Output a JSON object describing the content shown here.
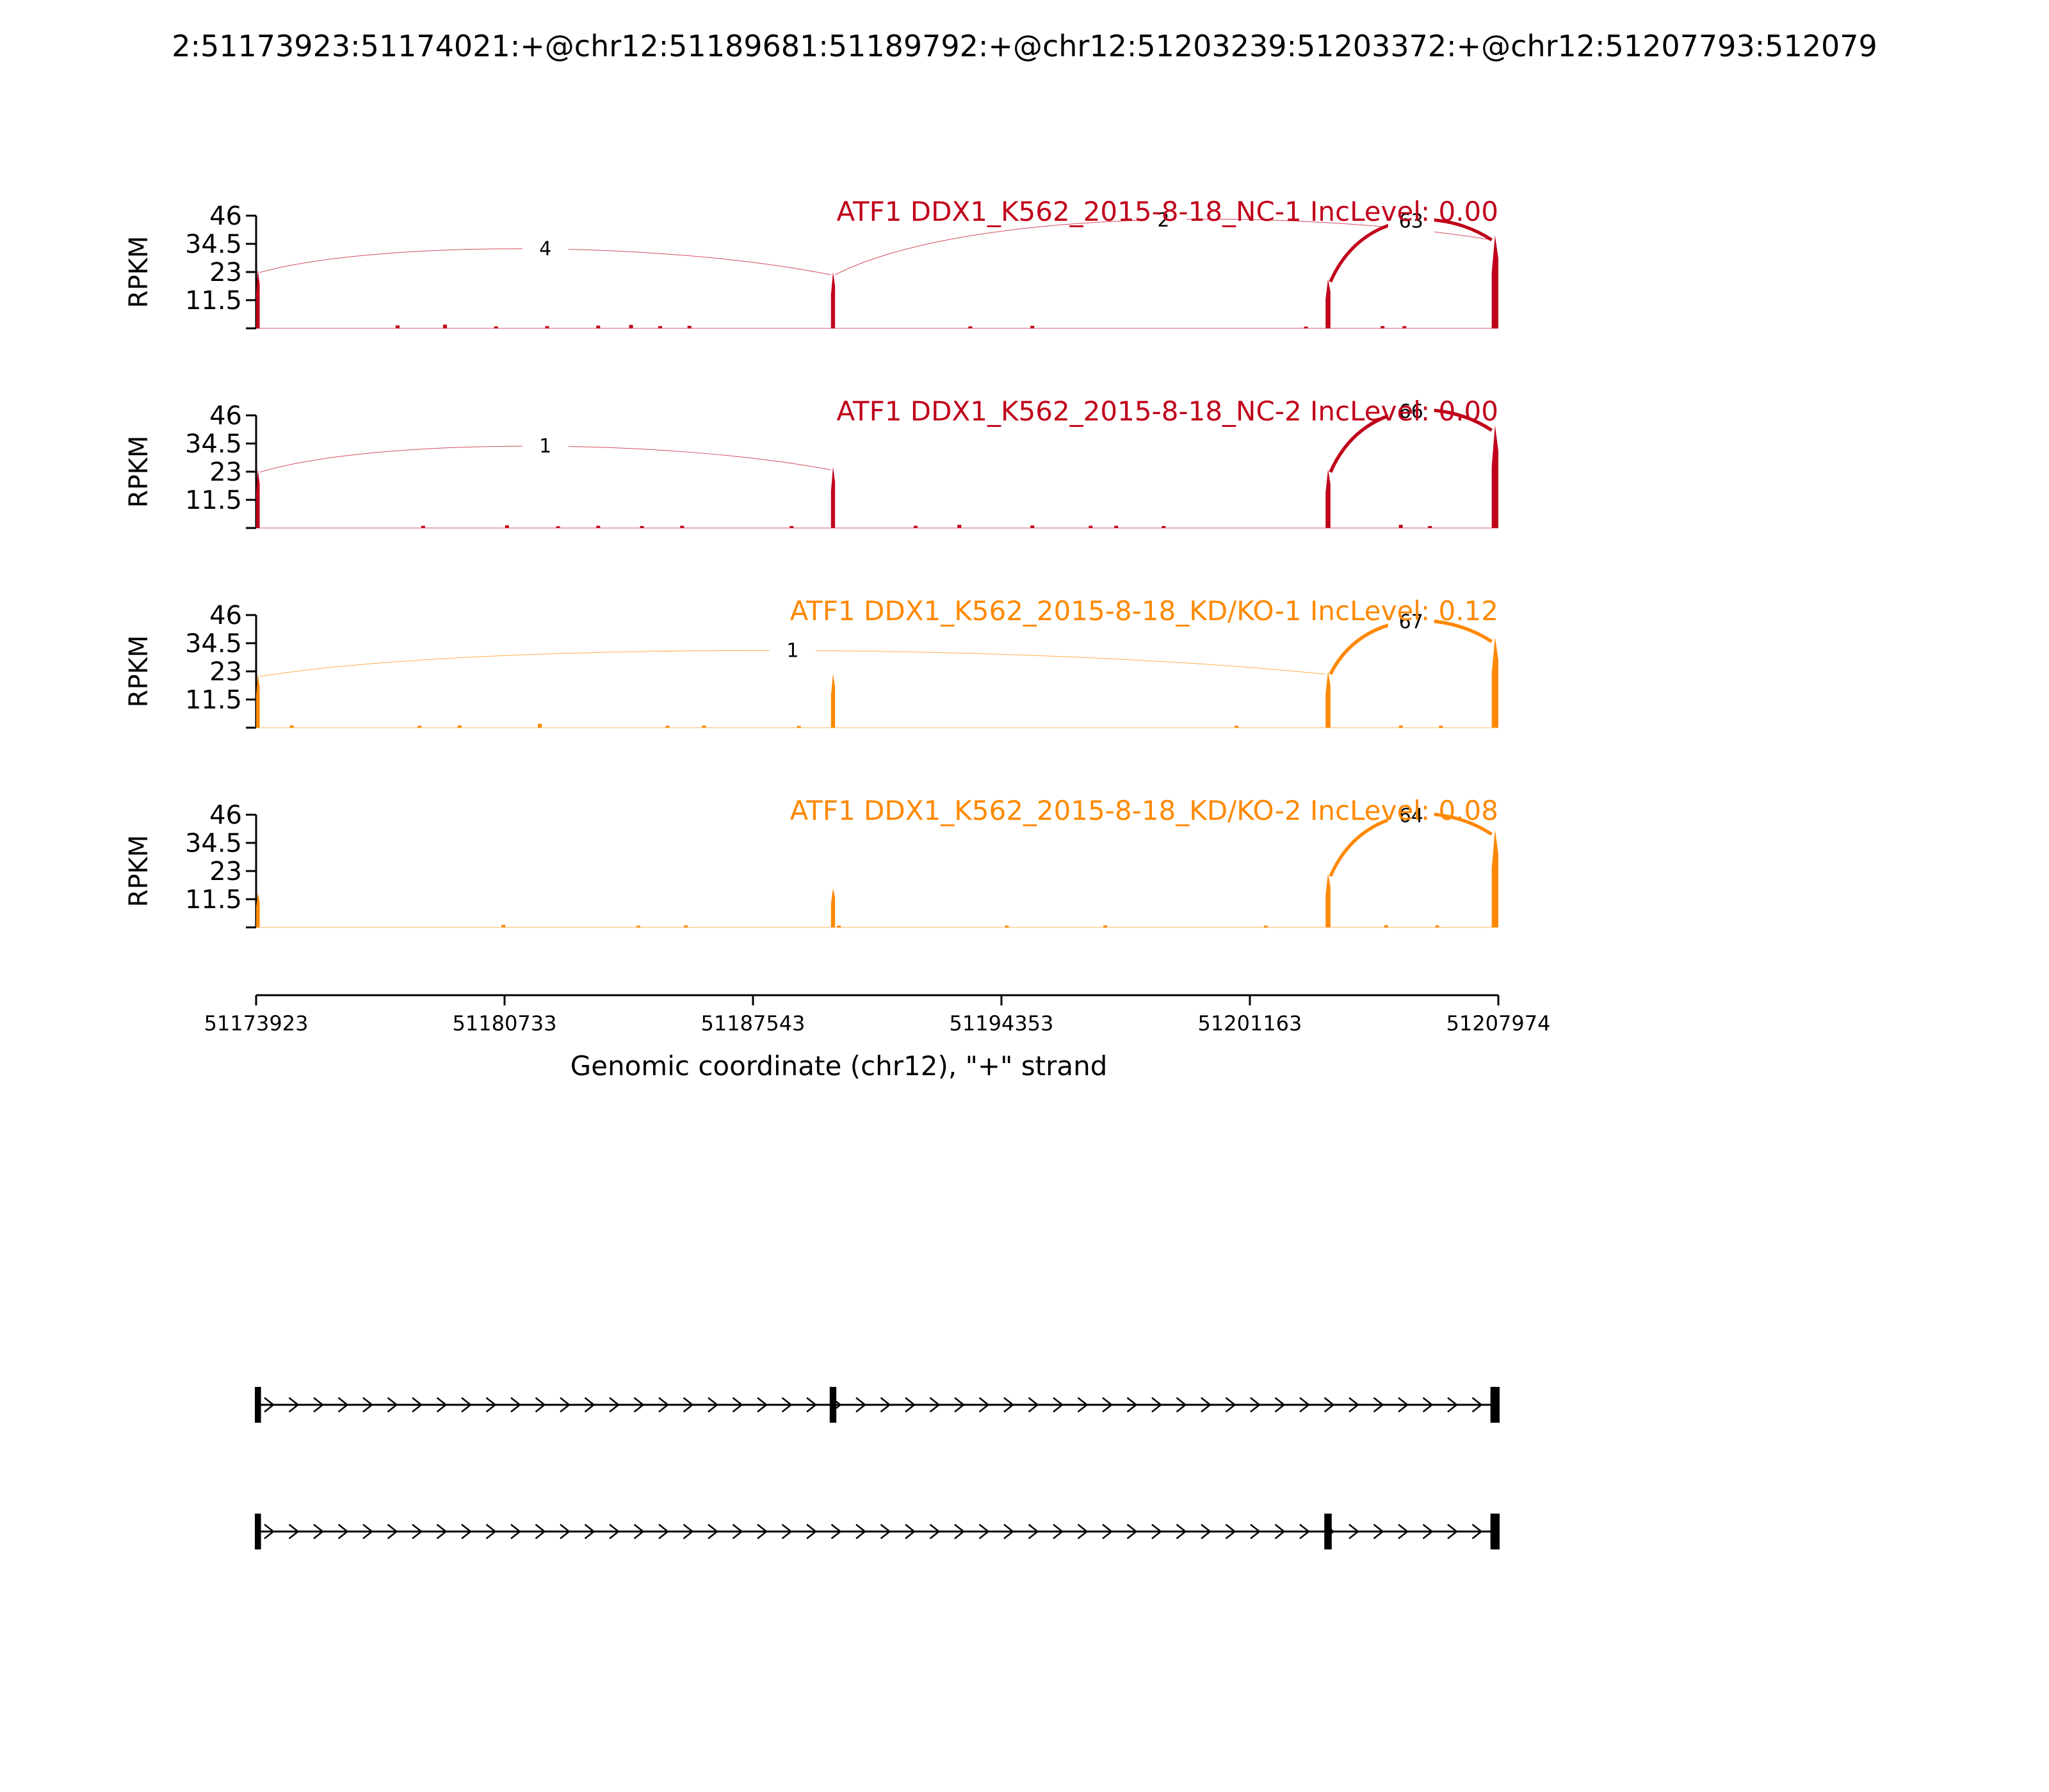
{
  "title": "2:51173923:51174021:+@chr12:51189681:51189792:+@chr12:51203239:51203372:+@chr12:51207793:512079",
  "colors": {
    "nc": "#c0001a",
    "kd": "#ff8800",
    "axis": "#000000"
  },
  "chart_data": {
    "type": "sashimi",
    "title": "2:51173923:51174021:+@chr12:51189681:51189792:+@chr12:51203239:51203372:+@chr12:51207793:512079",
    "xlabel": "Genomic coordinate (chr12), \"+\" strand",
    "xlim": [
      51173923,
      51207974
    ],
    "xticks": [
      "51173923",
      "51180733",
      "51187543",
      "51194353",
      "51201163",
      "51207974"
    ],
    "ylabel": "RPKM",
    "ylim": [
      0,
      46
    ],
    "yticks": [
      "46",
      "34.5",
      "23",
      "11.5"
    ],
    "exons": [
      [
        51173923,
        51174021
      ],
      [
        51189681,
        51189792
      ],
      [
        51203239,
        51203372
      ],
      [
        51207793,
        51207974
      ]
    ],
    "tracks": [
      {
        "label": "ATF1 DDX1_K562_2015-8-18_NC-1 IncLevel: 0.00",
        "group": "nc",
        "junctions": [
          {
            "from": 51174021,
            "to": 51189681,
            "count": "4",
            "side": "above"
          },
          {
            "from": 51189792,
            "to": 51207793,
            "count": "2",
            "side": "above"
          },
          {
            "from": 51203372,
            "to": 51207793,
            "count": "63",
            "side": "above"
          }
        ],
        "exon_peaks": [
          24,
          23,
          20,
          38
        ],
        "small_peaks": [
          [
            51177800,
            1.2
          ],
          [
            51179100,
            1.5
          ],
          [
            51180500,
            0.8
          ],
          [
            51181900,
            0.9
          ],
          [
            51183300,
            1.1
          ],
          [
            51184200,
            1.4
          ],
          [
            51185000,
            0.9
          ],
          [
            51185800,
            1.0
          ],
          [
            51193500,
            0.8
          ],
          [
            51195200,
            1.0
          ],
          [
            51202700,
            0.7
          ],
          [
            51204800,
            0.9
          ],
          [
            51205400,
            0.9
          ]
        ]
      },
      {
        "label": "ATF1 DDX1_K562_2015-8-18_NC-2 IncLevel: 0.00",
        "group": "nc",
        "junctions": [
          {
            "from": 51174021,
            "to": 51189681,
            "count": "1",
            "side": "above"
          },
          {
            "from": 51203372,
            "to": 51207793,
            "count": "66",
            "side": "above"
          }
        ],
        "exon_peaks": [
          24,
          25,
          24,
          42
        ],
        "small_peaks": [
          [
            51178500,
            0.9
          ],
          [
            51180800,
            1.1
          ],
          [
            51182200,
            0.7
          ],
          [
            51183300,
            0.9
          ],
          [
            51184500,
            0.8
          ],
          [
            51185600,
            0.9
          ],
          [
            51188600,
            0.8
          ],
          [
            51192000,
            0.9
          ],
          [
            51193200,
            1.3
          ],
          [
            51195200,
            1.0
          ],
          [
            51196800,
            0.9
          ],
          [
            51197500,
            0.9
          ],
          [
            51198800,
            0.8
          ],
          [
            51205300,
            1.3
          ],
          [
            51206100,
            0.8
          ]
        ]
      },
      {
        "label": "ATF1 DDX1_K562_2015-8-18_KD/KO-1 IncLevel: 0.12",
        "group": "kd",
        "junctions": [
          {
            "from": 51174021,
            "to": 51203239,
            "count": "1",
            "side": "above"
          },
          {
            "from": 51203372,
            "to": 51207793,
            "count": "67",
            "side": "above"
          }
        ],
        "exon_peaks": [
          22,
          22,
          23,
          37
        ],
        "small_peaks": [
          [
            51174900,
            0.9
          ],
          [
            51178400,
            0.8
          ],
          [
            51179500,
            0.9
          ],
          [
            51181700,
            1.6
          ],
          [
            51185200,
            0.8
          ],
          [
            51186200,
            0.9
          ],
          [
            51188800,
            0.7
          ],
          [
            51200800,
            0.8
          ],
          [
            51205300,
            0.9
          ],
          [
            51206400,
            0.8
          ]
        ]
      },
      {
        "label": "ATF1 DDX1_K562_2015-8-18_KD/KO-2 IncLevel: 0.08",
        "group": "kd",
        "junctions": [
          {
            "from": 51203372,
            "to": 51207793,
            "count": "64",
            "side": "above"
          }
        ],
        "exon_peaks": [
          14,
          16,
          22,
          40
        ],
        "small_peaks": [
          [
            51180700,
            1.0
          ],
          [
            51184400,
            0.7
          ],
          [
            51185700,
            0.8
          ],
          [
            51189900,
            0.7
          ],
          [
            51194500,
            0.7
          ],
          [
            51197200,
            0.8
          ],
          [
            51201600,
            0.7
          ],
          [
            51204900,
            0.9
          ],
          [
            51206300,
            0.8
          ]
        ]
      }
    ],
    "gene_models": [
      {
        "exons": [
          [
            51173923,
            51174021
          ],
          [
            51189681,
            51189792
          ],
          [
            51207793,
            51207974
          ]
        ]
      },
      {
        "exons": [
          [
            51173923,
            51174021
          ],
          [
            51203239,
            51203372
          ],
          [
            51207793,
            51207974
          ]
        ]
      }
    ]
  }
}
